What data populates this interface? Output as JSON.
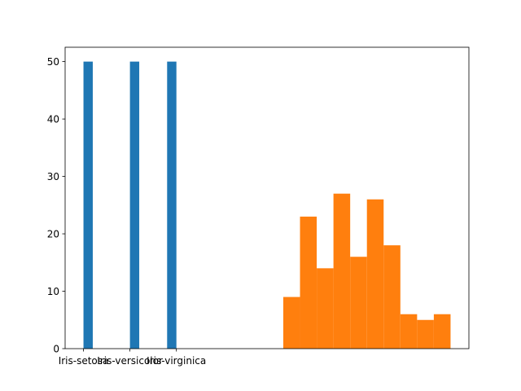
{
  "chart_data": {
    "type": "histogram",
    "series": [
      {
        "color": "#1f77b4",
        "bins": [
          0,
          0.2,
          0.4,
          0.6,
          0.8,
          1.0,
          1.2,
          1.4,
          1.6,
          1.8,
          2.0
        ],
        "values": [
          50,
          0,
          0,
          0,
          0,
          50,
          0,
          0,
          0,
          50
        ]
      },
      {
        "color": "#ff7f0e",
        "bins": [
          4.3,
          4.66,
          5.02,
          5.38,
          5.74,
          6.1,
          6.46,
          6.82,
          7.18,
          7.54,
          7.9
        ],
        "values": [
          9,
          23,
          14,
          27,
          16,
          26,
          18,
          6,
          5,
          6
        ]
      }
    ],
    "xlim": [
      -0.395,
      8.295
    ],
    "xticks": [
      {
        "value": 0,
        "label": "Iris-setosa"
      },
      {
        "value": 1,
        "label": "Iris-versicolor"
      },
      {
        "value": 2,
        "label": "Iris-virginica"
      }
    ],
    "ylim": [
      0,
      52.5
    ],
    "yticks": [
      0,
      10,
      20,
      30,
      40,
      50
    ]
  }
}
